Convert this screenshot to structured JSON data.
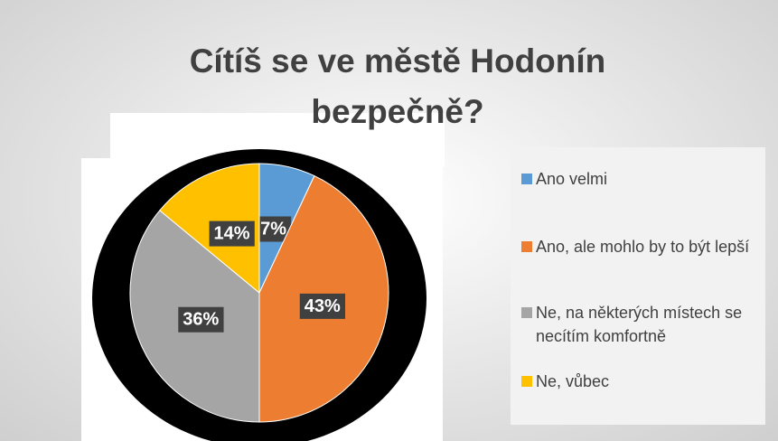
{
  "chart_data": {
    "type": "pie",
    "title": "Cítíš se ve městě Hodonín bezpečně?",
    "categories": [
      "Ano velmi",
      "Ano, ale mohlo by to být lepší",
      "Ne, na některých místech se necítím komfortně",
      "Ne, vůbec"
    ],
    "values": [
      7,
      43,
      36,
      14
    ],
    "value_labels": [
      "7%",
      "43%",
      "36%",
      "14%"
    ],
    "colors": [
      "#5b9bd5",
      "#ed7d31",
      "#a5a5a5",
      "#ffc000"
    ],
    "legend": "right"
  }
}
